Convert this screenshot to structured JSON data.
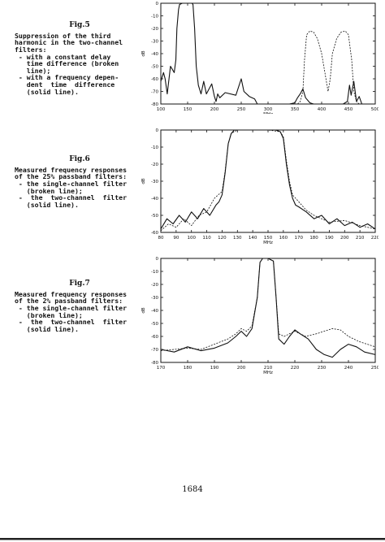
{
  "page_number": "1684",
  "figures": [
    {
      "label": "Fig.5",
      "caption": "Suppression of the third\nharmonic in the two-channel\nfilters:\n - with a constant delay\n   time difference (broken\n   line);\n - with a frequency depen-\n   dent  time  difference\n   (solid line).",
      "chart_data": {
        "type": "line",
        "xlabel": "MHz",
        "ylabel": "dB",
        "xlim": [
          100,
          500
        ],
        "ylim": [
          -80,
          0
        ],
        "xticks": [
          "100",
          "150",
          "200",
          "250",
          "300",
          "350",
          "400",
          "450",
          "500"
        ],
        "yticks": [
          "0",
          "-10",
          "-20",
          "-30",
          "-40",
          "-50",
          "-60",
          "-70",
          "-80"
        ],
        "grid": false,
        "series": [
          {
            "style": "solid",
            "x": [
              100,
              105,
              108,
              112,
              118,
              125,
              128,
              130,
              133,
              135,
              140,
              150,
              158,
              160,
              163,
              166,
              170,
              175,
              180,
              185,
              190,
              195,
              200,
              203,
              206,
              210,
              220,
              240,
              250,
              255,
              265,
              275,
              280,
              300,
              340,
              350,
              355,
              360,
              365,
              370,
              378,
              385,
              395,
              400,
              420,
              440,
              448,
              452,
              455,
              460,
              465,
              470,
              475,
              480,
              490,
              500
            ],
            "y": [
              -62,
              -55,
              -60,
              -72,
              -50,
              -55,
              -45,
              -20,
              -5,
              -1,
              0,
              0,
              0,
              -1,
              -20,
              -50,
              -65,
              -72,
              -62,
              -72,
              -68,
              -64,
              -74,
              -78,
              -72,
              -75,
              -71,
              -73,
              -60,
              -70,
              -74,
              -76,
              -80,
              -80,
              -80,
              -79,
              -75,
              -72,
              -68,
              -75,
              -79,
              -80,
              -80,
              -80,
              -80,
              -80,
              -78,
              -65,
              -73,
              -62,
              -78,
              -74,
              -80,
              -80,
              -80,
              -80
            ]
          },
          {
            "style": "dashed",
            "x": [
              355,
              360,
              365,
              368,
              372,
              378,
              385,
              392,
              400,
              408,
              412,
              416,
              420,
              428,
              436,
              444,
              450,
              456,
              460,
              465,
              470,
              475,
              480
            ],
            "y": [
              -80,
              -78,
              -70,
              -45,
              -25,
              -22,
              -23,
              -28,
              -40,
              -60,
              -70,
              -60,
              -40,
              -28,
              -23,
              -22,
              -25,
              -45,
              -70,
              -78,
              -80,
              -80,
              -80
            ]
          }
        ]
      }
    },
    {
      "label": "Fig.6",
      "caption": "Measured frequency responses\nof the 25% passband filters:\n - the single-channel filter\n   (broken line);\n -  the  two-channel  filter\n   (solid line).",
      "chart_data": {
        "type": "line",
        "xlabel": "MHz",
        "ylabel": "dB",
        "xlim": [
          80,
          220
        ],
        "ylim": [
          -60,
          0
        ],
        "xticks": [
          "80",
          "90",
          "100",
          "110",
          "120",
          "130",
          "140",
          "150",
          "160",
          "170",
          "180",
          "190",
          "200",
          "210",
          "220"
        ],
        "yticks": [
          "0",
          "-10",
          "-20",
          "-30",
          "-40",
          "-50",
          "-60"
        ],
        "grid": false,
        "series": [
          {
            "style": "solid",
            "x": [
              80,
              84,
              88,
              92,
              96,
              100,
              104,
              108,
              112,
              116,
              118,
              120,
              122,
              124,
              126,
              128,
              130,
              140,
              150,
              155,
              158,
              160,
              162,
              164,
              166,
              168,
              170,
              175,
              180,
              185,
              190,
              195,
              200,
              205,
              210,
              215,
              220
            ],
            "y": [
              -58,
              -52,
              -55,
              -50,
              -54,
              -48,
              -52,
              -46,
              -50,
              -44,
              -42,
              -38,
              -25,
              -8,
              -2,
              0,
              0,
              0,
              0,
              0,
              -1,
              -5,
              -20,
              -32,
              -40,
              -44,
              -45,
              -48,
              -52,
              -50,
              -55,
              -52,
              -56,
              -54,
              -57,
              -55,
              -58
            ]
          },
          {
            "style": "dashed",
            "x": [
              80,
              85,
              90,
              95,
              100,
              105,
              110,
              115,
              120,
              122,
              124,
              126,
              130,
              140,
              150,
              158,
              160,
              162,
              164,
              166,
              170,
              175,
              180,
              190,
              200,
              210,
              220
            ],
            "y": [
              -59,
              -55,
              -57,
              -52,
              -56,
              -50,
              -48,
              -40,
              -36,
              -24,
              -8,
              -2,
              0,
              0,
              0,
              -1,
              -4,
              -18,
              -30,
              -38,
              -42,
              -47,
              -50,
              -54,
              -53,
              -56,
              -58
            ]
          }
        ]
      }
    },
    {
      "label": "Fig.7",
      "caption": "Measured frequency responses\nof the 2% passband filters:\n - the single-channel filter\n   (broken line);\n -  the  two-channel  filter\n   (solid line).",
      "chart_data": {
        "type": "line",
        "xlabel": "MHz",
        "ylabel": "dB",
        "xlim": [
          170,
          250
        ],
        "ylim": [
          -80,
          0
        ],
        "xticks": [
          "170",
          "180",
          "190",
          "200",
          "210",
          "220",
          "230",
          "240",
          "250"
        ],
        "yticks": [
          "0",
          "-10",
          "-20",
          "-30",
          "-40",
          "-50",
          "-60",
          "-70",
          "-80"
        ],
        "grid": false,
        "series": [
          {
            "style": "solid",
            "x": [
              170,
              175,
              180,
              185,
              190,
              195,
              198,
              200,
              202,
              204,
              206,
              207,
              208,
              210,
              212,
              213,
              214,
              216,
              218,
              220,
              222,
              225,
              228,
              231,
              234,
              237,
              240,
              243,
              246,
              250
            ],
            "y": [
              -70,
              -72,
              -68,
              -71,
              -69,
              -65,
              -60,
              -56,
              -60,
              -54,
              -30,
              -3,
              0,
              0,
              -2,
              -30,
              -62,
              -66,
              -60,
              -55,
              -58,
              -62,
              -70,
              -74,
              -76,
              -70,
              -66,
              -68,
              -72,
              -74
            ]
          },
          {
            "style": "dashed",
            "x": [
              170,
              175,
              180,
              185,
              190,
              195,
              198,
              200,
              202,
              204,
              206,
              207,
              208,
              210,
              212,
              213,
              214,
              216,
              220,
              224,
              228,
              231,
              234,
              237,
              240,
              244,
              250
            ],
            "y": [
              -71,
              -70,
              -69,
              -70,
              -66,
              -62,
              -58,
              -54,
              -56,
              -52,
              -30,
              -3,
              0,
              0,
              -2,
              -30,
              -58,
              -60,
              -56,
              -60,
              -58,
              -56,
              -54,
              -55,
              -60,
              -64,
              -68
            ]
          }
        ]
      }
    }
  ]
}
